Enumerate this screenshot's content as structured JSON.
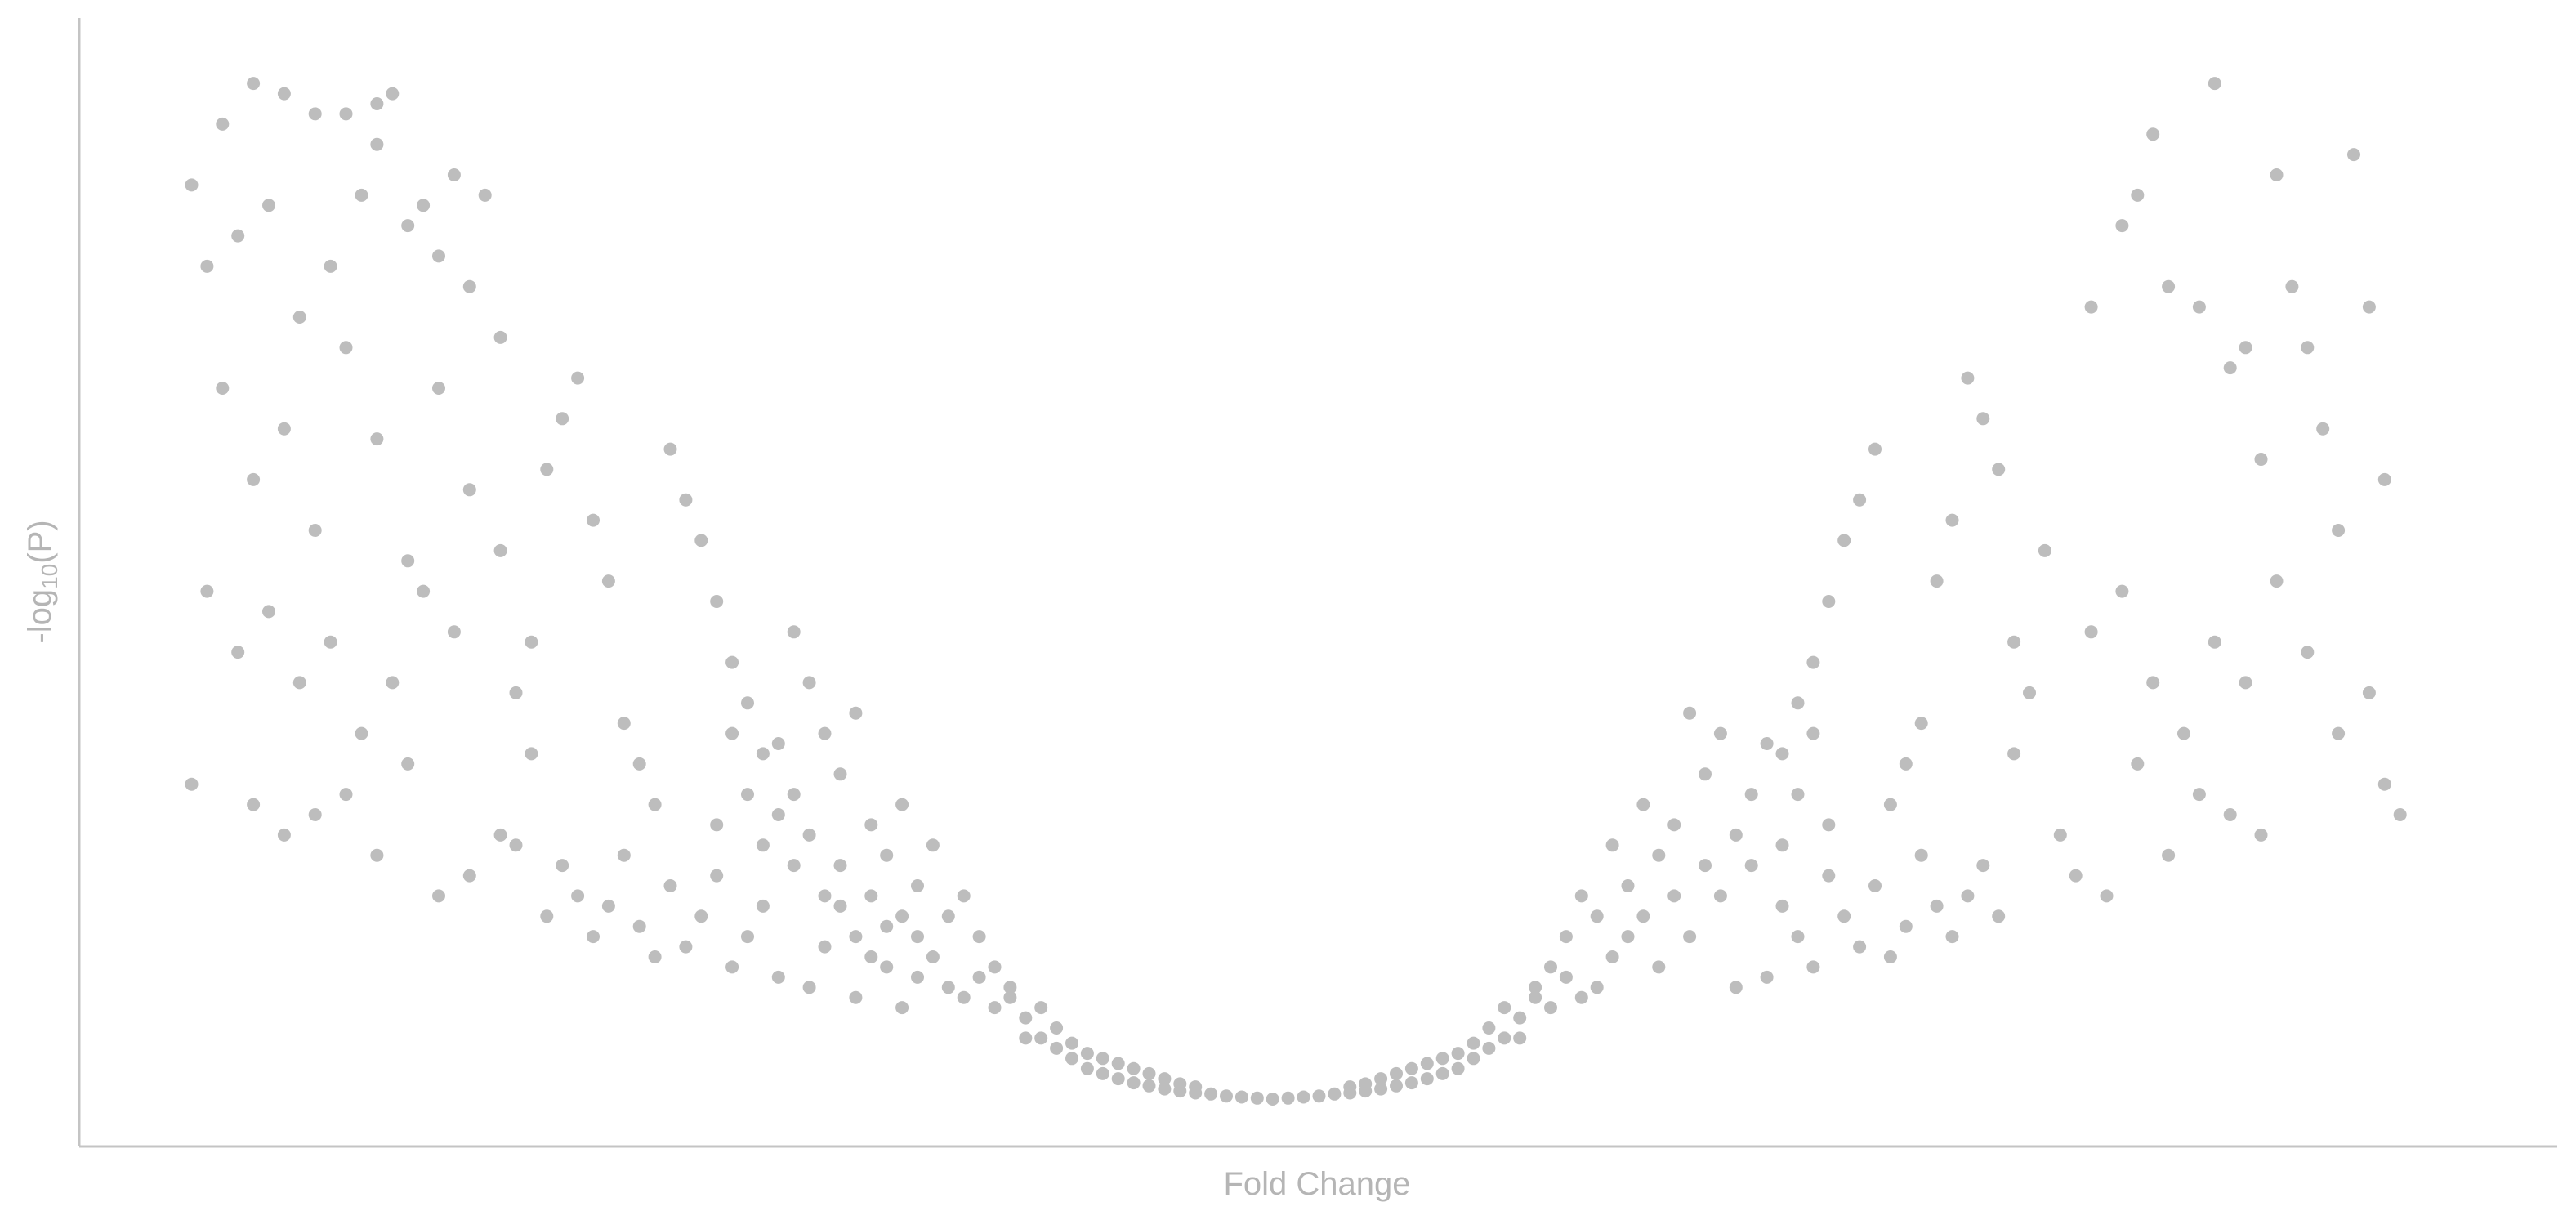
{
  "chart_data": {
    "type": "scatter",
    "title": "",
    "xlabel": "Fold Change",
    "ylabel_prefix": "-log",
    "ylabel_subscript": "10",
    "ylabel_suffix": "(P)",
    "show_tick_labels": false,
    "grid": false,
    "legend": "none",
    "point_color": "#bdbdbd",
    "xlim": [
      -7.5,
      8
    ],
    "ylim": [
      0,
      10.5
    ],
    "series": [
      {
        "name": "",
        "points": [
          [
            -7.0,
            9.0
          ],
          [
            -6.8,
            9.6
          ],
          [
            -6.6,
            10.0
          ],
          [
            -6.4,
            9.9
          ],
          [
            -6.2,
            9.7
          ],
          [
            -6.0,
            9.7
          ],
          [
            -5.8,
            9.8
          ],
          [
            -5.7,
            9.9
          ],
          [
            -6.9,
            8.2
          ],
          [
            -6.7,
            8.5
          ],
          [
            -6.5,
            8.8
          ],
          [
            -6.3,
            7.7
          ],
          [
            -6.1,
            8.2
          ],
          [
            -5.9,
            8.9
          ],
          [
            -5.8,
            9.4
          ],
          [
            -5.6,
            8.6
          ],
          [
            -5.5,
            8.8
          ],
          [
            -5.4,
            8.3
          ],
          [
            -5.3,
            9.1
          ],
          [
            -5.2,
            8.0
          ],
          [
            -5.1,
            8.9
          ],
          [
            -6.8,
            7.0
          ],
          [
            -6.6,
            6.1
          ],
          [
            -6.4,
            6.6
          ],
          [
            -6.2,
            5.6
          ],
          [
            -6.0,
            7.4
          ],
          [
            -5.8,
            6.5
          ],
          [
            -5.6,
            5.3
          ],
          [
            -5.4,
            7.0
          ],
          [
            -5.2,
            6.0
          ],
          [
            -5.0,
            7.5
          ],
          [
            -6.9,
            5.0
          ],
          [
            -6.7,
            4.4
          ],
          [
            -6.5,
            4.8
          ],
          [
            -6.3,
            4.1
          ],
          [
            -6.1,
            4.5
          ],
          [
            -5.9,
            3.6
          ],
          [
            -5.7,
            4.1
          ],
          [
            -5.5,
            5.0
          ],
          [
            -5.3,
            4.6
          ],
          [
            -7.0,
            3.1
          ],
          [
            -6.6,
            2.9
          ],
          [
            -6.4,
            2.6
          ],
          [
            -6.2,
            2.8
          ],
          [
            -6.0,
            3.0
          ],
          [
            -5.8,
            2.4
          ],
          [
            -5.6,
            3.3
          ],
          [
            -5.4,
            2.0
          ],
          [
            -5.2,
            2.2
          ],
          [
            -5.0,
            2.6
          ],
          [
            -4.9,
            2.5
          ],
          [
            -4.8,
            3.4
          ],
          [
            -4.7,
            1.8
          ],
          [
            -5.0,
            5.4
          ],
          [
            -4.9,
            4.0
          ],
          [
            -4.8,
            4.5
          ],
          [
            -4.7,
            6.2
          ],
          [
            -4.6,
            6.7
          ],
          [
            -4.5,
            7.1
          ],
          [
            -4.4,
            5.7
          ],
          [
            -4.3,
            5.1
          ],
          [
            -4.2,
            3.7
          ],
          [
            -4.1,
            3.3
          ],
          [
            -4.0,
            2.9
          ],
          [
            -3.9,
            6.4
          ],
          [
            -3.8,
            5.9
          ],
          [
            -3.7,
            5.5
          ],
          [
            -3.6,
            4.9
          ],
          [
            -3.5,
            4.3
          ],
          [
            -3.4,
            3.9
          ],
          [
            -3.3,
            3.4
          ],
          [
            -3.2,
            2.8
          ],
          [
            -4.6,
            2.3
          ],
          [
            -4.5,
            2.0
          ],
          [
            -4.4,
            1.6
          ],
          [
            -4.3,
            1.9
          ],
          [
            -4.2,
            2.4
          ],
          [
            -4.1,
            1.7
          ],
          [
            -4.0,
            1.4
          ],
          [
            -3.9,
            2.1
          ],
          [
            -3.8,
            1.5
          ],
          [
            -3.7,
            1.8
          ],
          [
            -3.6,
            2.2
          ],
          [
            -3.5,
            1.3
          ],
          [
            -3.4,
            1.6
          ],
          [
            -3.3,
            1.9
          ],
          [
            -3.2,
            1.2
          ],
          [
            -3.1,
            2.3
          ],
          [
            -3.0,
            1.1
          ],
          [
            -2.9,
            1.5
          ],
          [
            -2.8,
            1.9
          ],
          [
            -2.7,
            1.0
          ],
          [
            -2.6,
            1.4
          ],
          [
            -2.5,
            1.7
          ],
          [
            -2.4,
            0.9
          ],
          [
            -2.3,
            1.2
          ],
          [
            -3.1,
            4.6
          ],
          [
            -3.0,
            4.1
          ],
          [
            -2.9,
            3.6
          ],
          [
            -2.8,
            3.2
          ],
          [
            -2.7,
            3.8
          ],
          [
            -2.6,
            2.7
          ],
          [
            -2.5,
            2.4
          ],
          [
            -2.4,
            2.9
          ],
          [
            -2.3,
            2.1
          ],
          [
            -2.2,
            2.5
          ],
          [
            -2.1,
            1.8
          ],
          [
            -2.0,
            2.0
          ],
          [
            -1.9,
            1.6
          ],
          [
            -1.8,
            1.3
          ],
          [
            -1.7,
            1.0
          ],
          [
            -1.6,
            0.8
          ],
          [
            -1.5,
            0.6
          ],
          [
            -1.4,
            0.5
          ],
          [
            -1.3,
            0.4
          ],
          [
            -1.2,
            0.3
          ],
          [
            -1.1,
            0.25
          ],
          [
            -1.0,
            0.2
          ],
          [
            -0.9,
            0.16
          ],
          [
            -0.8,
            0.13
          ],
          [
            -0.7,
            0.1
          ],
          [
            -0.6,
            0.08
          ],
          [
            -0.5,
            0.06
          ],
          [
            -0.4,
            0.05
          ],
          [
            -0.3,
            0.03
          ],
          [
            -0.2,
            0.02
          ],
          [
            -0.1,
            0.01
          ],
          [
            0.0,
            0.0
          ],
          [
            0.1,
            0.01
          ],
          [
            0.2,
            0.02
          ],
          [
            0.3,
            0.03
          ],
          [
            0.4,
            0.05
          ],
          [
            0.5,
            0.06
          ],
          [
            0.6,
            0.08
          ],
          [
            0.7,
            0.1
          ],
          [
            0.8,
            0.13
          ],
          [
            0.9,
            0.16
          ],
          [
            1.0,
            0.2
          ],
          [
            1.1,
            0.25
          ],
          [
            1.2,
            0.3
          ],
          [
            1.3,
            0.4
          ],
          [
            1.4,
            0.5
          ],
          [
            1.5,
            0.6
          ],
          [
            1.6,
            0.8
          ],
          [
            1.7,
            1.0
          ],
          [
            1.8,
            1.3
          ],
          [
            1.9,
            1.6
          ],
          [
            2.0,
            2.0
          ],
          [
            2.1,
            1.8
          ],
          [
            2.2,
            2.5
          ],
          [
            2.3,
            2.1
          ],
          [
            2.4,
            2.9
          ],
          [
            2.5,
            2.4
          ],
          [
            2.6,
            2.7
          ],
          [
            2.7,
            3.8
          ],
          [
            2.8,
            3.2
          ],
          [
            2.9,
            3.6
          ],
          [
            3.0,
            1.1
          ],
          [
            3.1,
            2.3
          ],
          [
            3.2,
            1.2
          ],
          [
            3.3,
            1.9
          ],
          [
            3.4,
            1.6
          ],
          [
            3.5,
            1.3
          ],
          [
            3.6,
            2.2
          ],
          [
            3.7,
            1.8
          ],
          [
            3.8,
            1.5
          ],
          [
            3.9,
            2.1
          ],
          [
            4.0,
            1.4
          ],
          [
            4.1,
            1.7
          ],
          [
            4.2,
            2.4
          ],
          [
            4.3,
            1.9
          ],
          [
            4.4,
            1.6
          ],
          [
            4.5,
            2.0
          ],
          [
            4.6,
            2.3
          ],
          [
            4.7,
            1.8
          ],
          [
            4.8,
            3.4
          ],
          [
            3.3,
            3.4
          ],
          [
            3.4,
            3.9
          ],
          [
            3.5,
            4.3
          ],
          [
            3.6,
            4.9
          ],
          [
            3.7,
            5.5
          ],
          [
            3.8,
            5.9
          ],
          [
            3.9,
            6.4
          ],
          [
            4.0,
            2.9
          ],
          [
            4.1,
            3.3
          ],
          [
            4.2,
            3.7
          ],
          [
            4.3,
            5.1
          ],
          [
            4.4,
            5.7
          ],
          [
            4.5,
            7.1
          ],
          [
            4.6,
            6.7
          ],
          [
            4.7,
            6.2
          ],
          [
            4.8,
            4.5
          ],
          [
            4.9,
            4.0
          ],
          [
            5.0,
            5.4
          ],
          [
            5.1,
            2.6
          ],
          [
            5.2,
            2.2
          ],
          [
            5.3,
            4.6
          ],
          [
            5.4,
            2.0
          ],
          [
            5.5,
            5.0
          ],
          [
            5.6,
            3.3
          ],
          [
            5.7,
            4.1
          ],
          [
            5.8,
            2.4
          ],
          [
            5.9,
            3.6
          ],
          [
            6.0,
            3.0
          ],
          [
            6.1,
            4.5
          ],
          [
            6.2,
            2.8
          ],
          [
            6.3,
            4.1
          ],
          [
            6.4,
            2.6
          ],
          [
            5.3,
            7.8
          ],
          [
            5.5,
            8.6
          ],
          [
            5.6,
            8.9
          ],
          [
            5.7,
            9.5
          ],
          [
            5.8,
            8.0
          ],
          [
            6.0,
            7.8
          ],
          [
            6.2,
            7.2
          ],
          [
            6.4,
            6.3
          ],
          [
            6.5,
            9.1
          ],
          [
            6.6,
            8.0
          ],
          [
            6.7,
            7.4
          ],
          [
            6.8,
            6.6
          ],
          [
            6.9,
            5.6
          ],
          [
            7.0,
            9.3
          ],
          [
            7.1,
            7.8
          ],
          [
            7.2,
            6.1
          ],
          [
            6.1,
            10.0
          ],
          [
            6.3,
            7.4
          ],
          [
            6.5,
            5.1
          ],
          [
            6.7,
            4.4
          ],
          [
            6.9,
            3.6
          ],
          [
            7.1,
            4.0
          ],
          [
            7.2,
            3.1
          ],
          [
            7.3,
            2.8
          ],
          [
            -2.0,
            1.0
          ],
          [
            -1.9,
            1.2
          ],
          [
            -1.8,
            0.9
          ],
          [
            -1.7,
            1.1
          ],
          [
            -1.6,
            0.6
          ],
          [
            -1.5,
            0.9
          ],
          [
            -1.4,
            0.7
          ],
          [
            -1.3,
            0.55
          ],
          [
            -2.2,
            1.4
          ],
          [
            -2.1,
            1.1
          ],
          [
            -2.3,
            1.6
          ],
          [
            -2.4,
            1.8
          ],
          [
            -2.5,
            1.3
          ],
          [
            -2.6,
            2.0
          ],
          [
            -2.7,
            1.6
          ],
          [
            -2.8,
            2.3
          ],
          [
            -2.9,
            2.0
          ],
          [
            -3.0,
            2.6
          ],
          [
            -3.1,
            3.0
          ],
          [
            -3.2,
            3.5
          ],
          [
            -3.3,
            2.5
          ],
          [
            -3.4,
            3.0
          ],
          [
            -3.5,
            3.6
          ],
          [
            -3.6,
            2.7
          ],
          [
            2.0,
            1.0
          ],
          [
            1.9,
            1.2
          ],
          [
            1.8,
            0.9
          ],
          [
            1.7,
            1.1
          ],
          [
            1.6,
            0.6
          ],
          [
            1.5,
            0.9
          ],
          [
            1.4,
            0.7
          ],
          [
            1.3,
            0.55
          ],
          [
            2.2,
            1.4
          ],
          [
            2.1,
            1.1
          ],
          [
            2.3,
            1.6
          ],
          [
            2.4,
            1.8
          ],
          [
            2.5,
            1.3
          ],
          [
            2.6,
            2.0
          ],
          [
            2.7,
            1.6
          ],
          [
            2.8,
            2.3
          ],
          [
            2.9,
            2.0
          ],
          [
            3.0,
            2.6
          ],
          [
            3.1,
            3.0
          ],
          [
            3.2,
            3.5
          ],
          [
            3.3,
            2.5
          ],
          [
            3.4,
            3.0
          ],
          [
            3.5,
            3.6
          ],
          [
            3.6,
            2.7
          ],
          [
            -1.2,
            0.45
          ],
          [
            -1.1,
            0.4
          ],
          [
            -1.0,
            0.35
          ],
          [
            -0.9,
            0.3
          ],
          [
            -0.8,
            0.25
          ],
          [
            -0.7,
            0.2
          ],
          [
            -0.6,
            0.15
          ],
          [
            -0.5,
            0.12
          ],
          [
            1.2,
            0.45
          ],
          [
            1.1,
            0.4
          ],
          [
            1.0,
            0.35
          ],
          [
            0.9,
            0.3
          ],
          [
            0.8,
            0.25
          ],
          [
            0.7,
            0.2
          ],
          [
            0.6,
            0.15
          ],
          [
            0.5,
            0.12
          ]
        ]
      }
    ]
  }
}
